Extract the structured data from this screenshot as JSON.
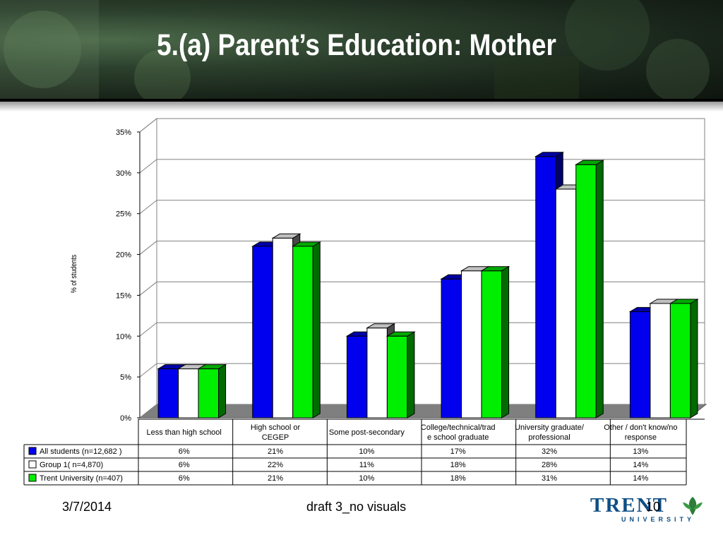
{
  "slide": {
    "title": "5.(a) Parent’s Education: Mother",
    "footer_date": "3/7/2014",
    "footer_center": "draft 3_no visuals",
    "slide_number": "10",
    "logo_text": "TRENT",
    "logo_subtext": "UNIVERSITY"
  },
  "chart_data": {
    "type": "bar",
    "ylabel": "% of students",
    "ylim": [
      0,
      35
    ],
    "yticks": [
      "0%",
      "5%",
      "10%",
      "15%",
      "20%",
      "25%",
      "30%",
      "35%"
    ],
    "grid": true,
    "legend": "table-left",
    "categories": [
      "Less than high school",
      "High school or CEGEP",
      "Some post-secondary",
      "College/technical/trade school graduate",
      "University graduate/ professional",
      "Other / don't know/no response"
    ],
    "category_lines": [
      [
        "Less than high school"
      ],
      [
        "High school or",
        "CEGEP"
      ],
      [
        "Some post-secondary"
      ],
      [
        "College/technical/trad",
        "e school graduate"
      ],
      [
        "University graduate/",
        "professional"
      ],
      [
        "Other / don't know/no",
        "response"
      ]
    ],
    "series": [
      {
        "name": "All students (n=12,682 )",
        "color": "#0000ee",
        "values": [
          6,
          21,
          10,
          17,
          32,
          13
        ],
        "labels": [
          "6%",
          "21%",
          "10%",
          "17%",
          "32%",
          "13%"
        ]
      },
      {
        "name": "Group 1( n=4,870)",
        "color": "#ffffff",
        "values": [
          6,
          22,
          11,
          18,
          28,
          14
        ],
        "labels": [
          "6%",
          "22%",
          "11%",
          "18%",
          "28%",
          "14%"
        ]
      },
      {
        "name": "Trent University (n=407)",
        "color": "#00ee00",
        "values": [
          6,
          21,
          10,
          18,
          31,
          14
        ],
        "labels": [
          "6%",
          "21%",
          "10%",
          "18%",
          "31%",
          "14%"
        ]
      }
    ]
  }
}
